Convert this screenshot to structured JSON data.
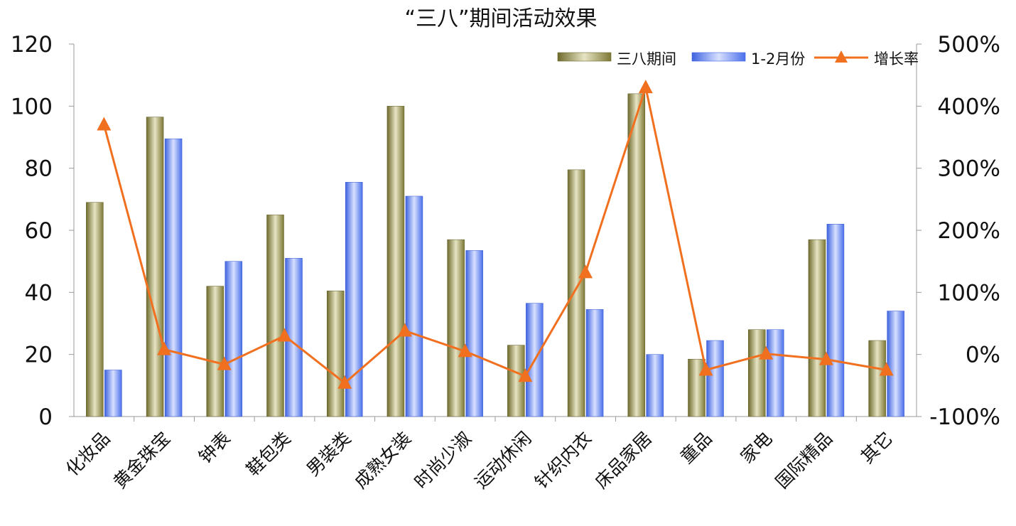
{
  "chart_data": {
    "type": "bar",
    "title": "“三八”期间活动效果",
    "categories": [
      "化妆品",
      "黄金珠宝",
      "钟表",
      "鞋包类",
      "男装类",
      "成熟女装",
      "时尚少淑",
      "运动休闲",
      "针织内衣",
      "床品家居",
      "童品",
      "家电",
      "国际精品",
      "其它"
    ],
    "series": [
      {
        "name": "三八期间",
        "kind": "bar",
        "axis": "left",
        "color": "#8f8a45",
        "values": [
          69,
          96.5,
          42,
          65,
          40.5,
          100,
          57,
          23,
          79.5,
          104,
          18.5,
          28,
          57,
          24.5
        ]
      },
      {
        "name": "1-2月份",
        "kind": "bar",
        "axis": "left",
        "color": "#5f86ee",
        "values": [
          15,
          89.5,
          50,
          51,
          75.5,
          71,
          53.5,
          36.5,
          34.5,
          20,
          24.5,
          28,
          62,
          34
        ]
      },
      {
        "name": "增长率",
        "kind": "line",
        "marker": "triangle",
        "axis": "right",
        "color": "#f07020",
        "values": [
          370,
          8,
          -16,
          30,
          -46,
          38,
          5,
          -35,
          132,
          430,
          -25,
          1,
          -8,
          -25
        ]
      }
    ],
    "left_axis": {
      "ylim": [
        0,
        120
      ],
      "ticks": [
        "0",
        "20",
        "40",
        "60",
        "80",
        "100",
        "120"
      ]
    },
    "right_axis": {
      "ylim": [
        -100,
        500
      ],
      "ticks": [
        "-100%",
        "0%",
        "100%",
        "200%",
        "300%",
        "400%",
        "500%"
      ]
    },
    "legend_position": "top-right",
    "grid": false
  }
}
